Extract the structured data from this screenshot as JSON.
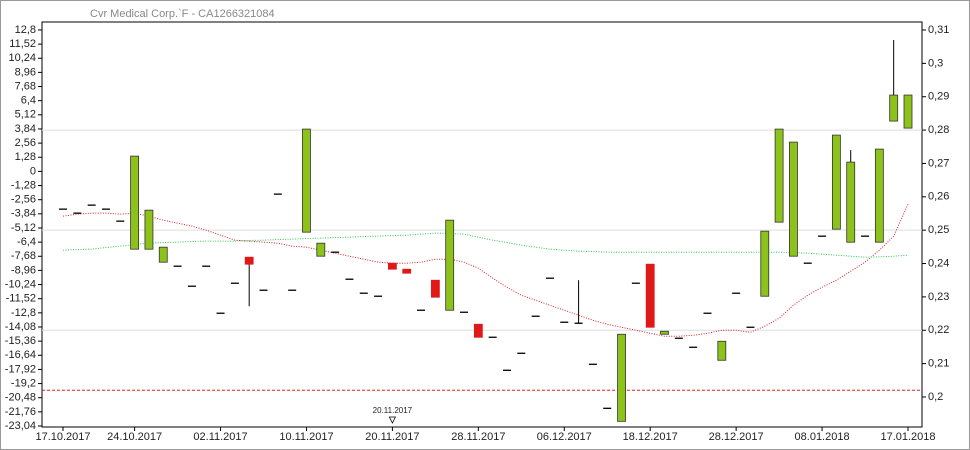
{
  "chart_data": {
    "type": "candlestick",
    "title": "Cvr Medical Corp.`F - CA1266321084",
    "categories": [
      "17.10.2017",
      null,
      null,
      null,
      null,
      "24.10.2017",
      null,
      null,
      null,
      null,
      null,
      "02.11.2017",
      null,
      null,
      null,
      null,
      null,
      "10.11.2017",
      null,
      null,
      null,
      null,
      null,
      "20.11.2017",
      null,
      null,
      null,
      null,
      null,
      "28.11.2017",
      null,
      null,
      null,
      null,
      null,
      "06.12.2017",
      null,
      null,
      null,
      null,
      null,
      "18.12.2017",
      null,
      null,
      null,
      null,
      null,
      "28.12.2017",
      null,
      null,
      null,
      null,
      null,
      "08.01.2018",
      null,
      null,
      null,
      null,
      null,
      "17.01.2018"
    ],
    "open": [
      0.2563,
      0.2551,
      0.2575,
      0.2563,
      0.2527,
      0.2443,
      0.2443,
      0.2404,
      0.2392,
      0.2332,
      0.2392,
      0.2251,
      0.2341,
      0.2419,
      0.232,
      0.2608,
      0.232,
      0.2494,
      0.2422,
      0.2434,
      0.2353,
      0.2311,
      0.2302,
      0.2401,
      0.2383,
      0.226,
      0.235,
      0.226,
      0.2254,
      0.2218,
      0.2179,
      0.208,
      0.2131,
      0.2242,
      0.2356,
      0.2224,
      0.2221,
      0.2098,
      0.1966,
      0.1927,
      0.2341,
      0.2398,
      0.2188,
      0.2176,
      0.2149,
      0.2251,
      0.211,
      0.2311,
      0.2209,
      0.2302,
      0.2524,
      0.2422,
      0.2401,
      0.2482,
      0.2503,
      0.2464,
      0.2482,
      0.2464,
      0.2827,
      0.2806
    ],
    "high": [
      0.2563,
      0.2551,
      0.2575,
      0.2563,
      0.2527,
      0.2722,
      0.256,
      0.2449,
      0.2392,
      0.2332,
      0.2392,
      0.2251,
      0.2341,
      0.2419,
      0.232,
      0.2608,
      0.232,
      0.2803,
      0.2461,
      0.2434,
      0.2353,
      0.2311,
      0.2302,
      0.2401,
      0.2383,
      0.226,
      0.235,
      0.253,
      0.2254,
      0.2218,
      0.2179,
      0.208,
      0.2131,
      0.2242,
      0.2356,
      0.2224,
      0.235,
      0.2098,
      0.1966,
      0.2188,
      0.2341,
      0.2398,
      0.2197,
      0.2176,
      0.2149,
      0.2251,
      0.2167,
      0.2311,
      0.2209,
      0.2497,
      0.2803,
      0.2764,
      0.2401,
      0.2482,
      0.2785,
      0.274,
      0.2482,
      0.2743,
      0.307,
      0.2905
    ],
    "low": [
      0.2563,
      0.2551,
      0.2575,
      0.2563,
      0.2527,
      0.2443,
      0.2443,
      0.2404,
      0.2392,
      0.2332,
      0.2392,
      0.2251,
      0.2341,
      0.2272,
      0.232,
      0.2608,
      0.232,
      0.2494,
      0.2422,
      0.2434,
      0.2353,
      0.2311,
      0.2302,
      0.2383,
      0.2371,
      0.226,
      0.2299,
      0.226,
      0.2254,
      0.2179,
      0.2179,
      0.208,
      0.2131,
      0.2242,
      0.2356,
      0.2224,
      0.2221,
      0.2098,
      0.1966,
      0.1927,
      0.2341,
      0.2209,
      0.2188,
      0.2176,
      0.2149,
      0.2251,
      0.211,
      0.2311,
      0.2209,
      0.2302,
      0.2524,
      0.2422,
      0.2401,
      0.2482,
      0.2503,
      0.2464,
      0.2482,
      0.2464,
      0.2827,
      0.2806
    ],
    "close": [
      0.2563,
      0.2551,
      0.2575,
      0.2563,
      0.2527,
      0.2722,
      0.256,
      0.2449,
      0.2392,
      0.2332,
      0.2392,
      0.2251,
      0.2341,
      0.2398,
      0.232,
      0.2608,
      0.232,
      0.2803,
      0.2461,
      0.2434,
      0.2353,
      0.2311,
      0.2302,
      0.2383,
      0.2371,
      0.226,
      0.2299,
      0.253,
      0.2254,
      0.2179,
      0.2179,
      0.208,
      0.2131,
      0.2242,
      0.2356,
      0.2224,
      0.2221,
      0.2098,
      0.1966,
      0.2188,
      0.2341,
      0.2209,
      0.2197,
      0.2176,
      0.2149,
      0.2251,
      0.2167,
      0.2311,
      0.2209,
      0.2497,
      0.2803,
      0.2764,
      0.2401,
      0.2482,
      0.2785,
      0.2704,
      0.2482,
      0.2743,
      0.2905,
      0.2905
    ],
    "up_color": "#8cc21a",
    "down_color": "#e01818",
    "lines": [
      {
        "color": "#e02020",
        "values": [
          0.2542,
          0.2548,
          0.2551,
          0.2551,
          0.2548,
          0.2551,
          0.2542,
          0.253,
          0.2521,
          0.2512,
          0.25,
          0.2485,
          0.247,
          0.2467,
          0.2464,
          0.2461,
          0.2452,
          0.2449,
          0.244,
          0.2431,
          0.2422,
          0.2413,
          0.2404,
          0.2401,
          0.2401,
          0.2404,
          0.2413,
          0.2413,
          0.2404,
          0.2386,
          0.2356,
          0.2329,
          0.2305,
          0.229,
          0.2275,
          0.226,
          0.2245,
          0.223,
          0.2218,
          0.2209,
          0.22,
          0.2191,
          0.2182,
          0.2182,
          0.2185,
          0.2191,
          0.22,
          0.22,
          0.2194,
          0.2212,
          0.2236,
          0.2275,
          0.2305,
          0.2329,
          0.235,
          0.2377,
          0.2404,
          0.244,
          0.2482,
          0.2578
        ]
      },
      {
        "color": "#2ec850",
        "values": [
          0.244,
          0.2442,
          0.2443,
          0.2448,
          0.2452,
          0.2457,
          0.2461,
          0.2463,
          0.2464,
          0.2466,
          0.2467,
          0.2467,
          0.2467,
          0.2469,
          0.247,
          0.2472,
          0.2473,
          0.2475,
          0.2476,
          0.2478,
          0.2479,
          0.2481,
          0.2482,
          0.2484,
          0.2485,
          0.2488,
          0.2491,
          0.249,
          0.2488,
          0.2479,
          0.247,
          0.2463,
          0.2455,
          0.2449,
          0.2443,
          0.244,
          0.2437,
          0.2436,
          0.2434,
          0.2434,
          0.2434,
          0.2434,
          0.2434,
          0.2434,
          0.2434,
          0.2434,
          0.2434,
          0.2434,
          0.2434,
          0.2434,
          0.2434,
          0.2433,
          0.2431,
          0.2428,
          0.2425,
          0.2422,
          0.2419,
          0.242,
          0.2422,
          0.2425
        ]
      }
    ],
    "reference_line": {
      "value": 0.202,
      "color": "#e02020"
    },
    "annotations": [
      {
        "text": "20.11.2017"
      }
    ],
    "ylim": [
      -23.13,
      13.52
    ],
    "yticks": [
      {
        "value": 12.8,
        "label": "12,8"
      },
      {
        "value": 11.52,
        "label": "11,52"
      },
      {
        "value": 10.24,
        "label": "10,24"
      },
      {
        "value": 8.96,
        "label": "8,96"
      },
      {
        "value": 7.68,
        "label": "7,68"
      },
      {
        "value": 6.4,
        "label": "6,4"
      },
      {
        "value": 5.12,
        "label": "5,12"
      },
      {
        "value": 3.84,
        "label": "3,84"
      },
      {
        "value": 2.56,
        "label": "2,56"
      },
      {
        "value": 1.28,
        "label": "1,28"
      },
      0,
      {
        "value": -1.28,
        "label": "-1,28"
      },
      {
        "value": -2.56,
        "label": "-2,56"
      },
      {
        "value": -3.84,
        "label": "-3,84"
      },
      {
        "value": -5.12,
        "label": "-5,12"
      },
      {
        "value": -6.4,
        "label": "-6,4"
      },
      {
        "value": -7.68,
        "label": "-7,68"
      },
      {
        "value": -8.96,
        "label": "-8,96"
      },
      {
        "value": -10.24,
        "label": "-10,24"
      },
      {
        "value": -11.52,
        "label": "-11,52"
      },
      {
        "value": -12.8,
        "label": "-12,8"
      },
      {
        "value": -14.08,
        "label": "-14,08"
      },
      {
        "value": -15.36,
        "label": "-15,36"
      },
      {
        "value": -16.64,
        "label": "-16,64"
      },
      {
        "value": -17.92,
        "label": "-17,92"
      },
      {
        "value": -19.2,
        "label": "-19,2"
      },
      {
        "value": -20.48,
        "label": "-20,48"
      },
      {
        "value": -21.76,
        "label": "-21,76"
      },
      {
        "value": -23.04,
        "label": "-23,04"
      }
    ],
    "y2lim": [
      0.191,
      0.3124
    ],
    "y2ticks": [
      {
        "value": 0.31,
        "label": "0,31"
      },
      {
        "value": 0.3,
        "label": "0,3"
      },
      {
        "value": 0.29,
        "label": "0,29"
      },
      {
        "value": 0.28,
        "label": "0,28"
      },
      {
        "value": 0.27,
        "label": "0,27"
      },
      {
        "value": 0.26,
        "label": "0,26"
      },
      {
        "value": 0.25,
        "label": "0,25"
      },
      {
        "value": 0.24,
        "label": "0,24"
      },
      {
        "value": 0.23,
        "label": "0,23"
      },
      {
        "value": 0.22,
        "label": "0,22"
      },
      {
        "value": 0.21,
        "label": "0,21"
      },
      {
        "value": 0.2,
        "label": "0,2"
      }
    ],
    "grid": true
  }
}
